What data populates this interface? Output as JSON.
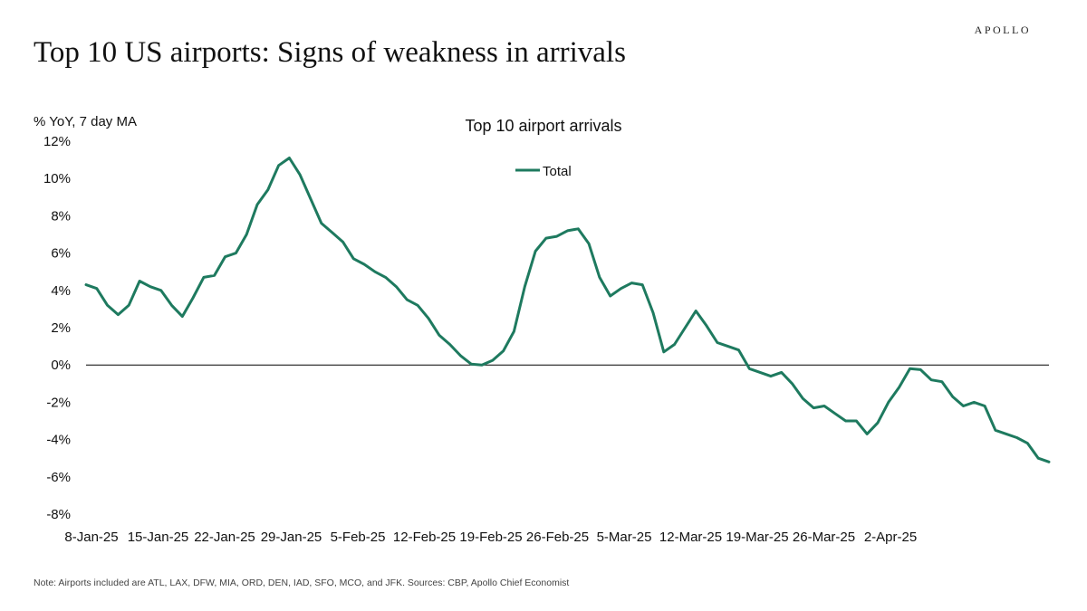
{
  "brand": "APOLLO",
  "headline": "Top 10 US airports: Signs of weakness in arrivals",
  "footnote": "Note: Airports included are ATL, LAX, DFW, MIA, ORD, DEN, IAD, SFO, MCO, and JFK. Sources: CBP, Apollo Chief Economist",
  "colors": {
    "series": "#1e7a5f",
    "zero_line": "#000000",
    "text": "#111111"
  },
  "chart_data": {
    "type": "line",
    "title": "Top 10 airport arrivals",
    "ylabel": "% YoY, 7 day MA",
    "xlabel": "",
    "ylim": [
      -8,
      12
    ],
    "ytick_values": [
      12,
      10,
      8,
      6,
      4,
      2,
      0,
      -2,
      -4,
      -6,
      -8
    ],
    "ytick_labels": [
      "12%",
      "10%",
      "8%",
      "6%",
      "4%",
      "2%",
      "0%",
      "-2%",
      "-4%",
      "-6%",
      "-8%"
    ],
    "xtick_labels": [
      "8-Jan-25",
      "15-Jan-25",
      "22-Jan-25",
      "29-Jan-25",
      "5-Feb-25",
      "12-Feb-25",
      "19-Feb-25",
      "26-Feb-25",
      "5-Mar-25",
      "12-Mar-25",
      "19-Mar-25",
      "26-Mar-25",
      "2-Apr-25"
    ],
    "x_start": "8-Jan-25",
    "x_end": "8-Apr-25",
    "grid": false,
    "zero_line": true,
    "legend_position": "top-center",
    "series": [
      {
        "name": "Total",
        "color": "#1e7a5f",
        "values": [
          4.3,
          4.1,
          3.2,
          2.7,
          3.2,
          4.5,
          4.2,
          4.0,
          3.2,
          2.6,
          3.6,
          4.7,
          4.8,
          5.8,
          6.0,
          7.0,
          8.6,
          9.4,
          10.7,
          11.1,
          10.2,
          8.9,
          7.6,
          7.1,
          6.6,
          5.7,
          5.4,
          5.0,
          4.7,
          4.2,
          3.5,
          3.2,
          2.5,
          1.6,
          1.1,
          0.5,
          0.05,
          0.0,
          0.25,
          0.75,
          1.8,
          4.2,
          6.1,
          6.8,
          6.9,
          7.2,
          7.3,
          6.5,
          4.7,
          3.7,
          4.1,
          4.4,
          4.3,
          2.8,
          0.7,
          1.1,
          2.0,
          2.9,
          2.1,
          1.2,
          1.0,
          0.8,
          -0.2,
          -0.4,
          -0.6,
          -0.4,
          -1.0,
          -1.8,
          -2.3,
          -2.2,
          -2.6,
          -3.0,
          -3.0,
          -3.7,
          -3.1,
          -2.0,
          -1.2,
          -0.2,
          -0.25,
          -0.8,
          -0.9,
          -1.7,
          -2.2,
          -2.0,
          -2.2,
          -3.5,
          -3.7,
          -3.9,
          -4.2,
          -5.0,
          -5.2
        ]
      }
    ]
  }
}
